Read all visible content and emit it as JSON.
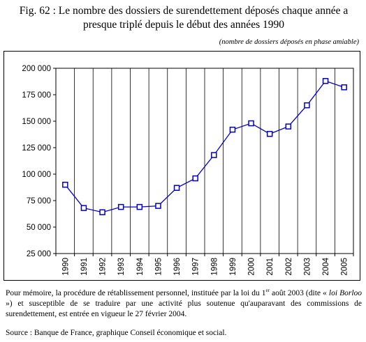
{
  "header": {
    "title_line1": "Fig. 62 : Le nombre des dossiers de surendettement déposés chaque année a",
    "title_line2": "presque triplé depuis le début des années 1990",
    "subtitle": "(nombre de dossiers déposés en phase amiable)"
  },
  "note": {
    "part1": "Pour mémoire, la procédure de rétablissement personnel, instituée par la loi du 1",
    "sup": "er",
    "part2": " août 2003 (dite «",
    "law": "loi Borloo",
    "part3": "») et susceptible de se traduire par une activité plus soutenue qu'auparavant des commissions de surendettement, est entrée en vigueur le 27 février 2004."
  },
  "source": "Source : Banque de France, graphique Conseil économique et social.",
  "chart_data": {
    "type": "line",
    "title": "",
    "xlabel": "",
    "ylabel": "",
    "x": [
      "1990",
      "1991",
      "1992",
      "1993",
      "1994",
      "1995",
      "1996",
      "1997",
      "1998",
      "1999",
      "2000",
      "2001",
      "2002",
      "2003",
      "2004",
      "2005"
    ],
    "series": [
      {
        "values": [
          90000,
          68000,
          64000,
          69000,
          69000,
          70000,
          87000,
          96000,
          118000,
          142000,
          148000,
          138000,
          145000,
          165000,
          188000,
          182000
        ]
      }
    ],
    "ylim": [
      25000,
      200000
    ],
    "yticks": [
      25000,
      50000,
      75000,
      100000,
      125000,
      150000,
      175000,
      200000
    ],
    "ytick_labels": [
      "25 000",
      "50 000",
      "75 000",
      "100 000",
      "125 000",
      "150 000",
      "175 000",
      "200 000"
    ],
    "grid": "vertical",
    "line_color": "#0000cc",
    "marker": "square"
  }
}
